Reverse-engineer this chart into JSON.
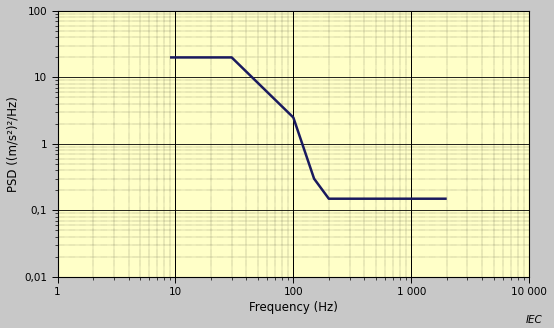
{
  "title": "",
  "xlabel": "Frequency (Hz)",
  "ylabel": "PSD ((m/s²)²/Hz)",
  "background_color": "#FFFFC8",
  "outer_background": "#c8c8c8",
  "line_color": "#1a1a5e",
  "line_width": 1.8,
  "xlim": [
    1,
    10000
  ],
  "ylim": [
    0.01,
    100
  ],
  "x_points": [
    9,
    9,
    30,
    100,
    150,
    200,
    500,
    2000
  ],
  "y_points": [
    20,
    20,
    20,
    2.5,
    0.3,
    0.15,
    0.15,
    0.15
  ],
  "vertical_line_freqs": [
    10,
    100,
    1000
  ],
  "ytick_labels": [
    "0,01",
    "0,1",
    "1",
    "10",
    "100"
  ],
  "ytick_values": [
    0.01,
    0.1,
    1,
    10,
    100
  ],
  "xtick_labels": [
    "1",
    "10",
    "100",
    "1 000",
    "10 000"
  ],
  "xtick_values": [
    1,
    10,
    100,
    1000,
    10000
  ],
  "watermark": "IEC",
  "figsize": [
    5.54,
    3.28
  ],
  "dpi": 100
}
